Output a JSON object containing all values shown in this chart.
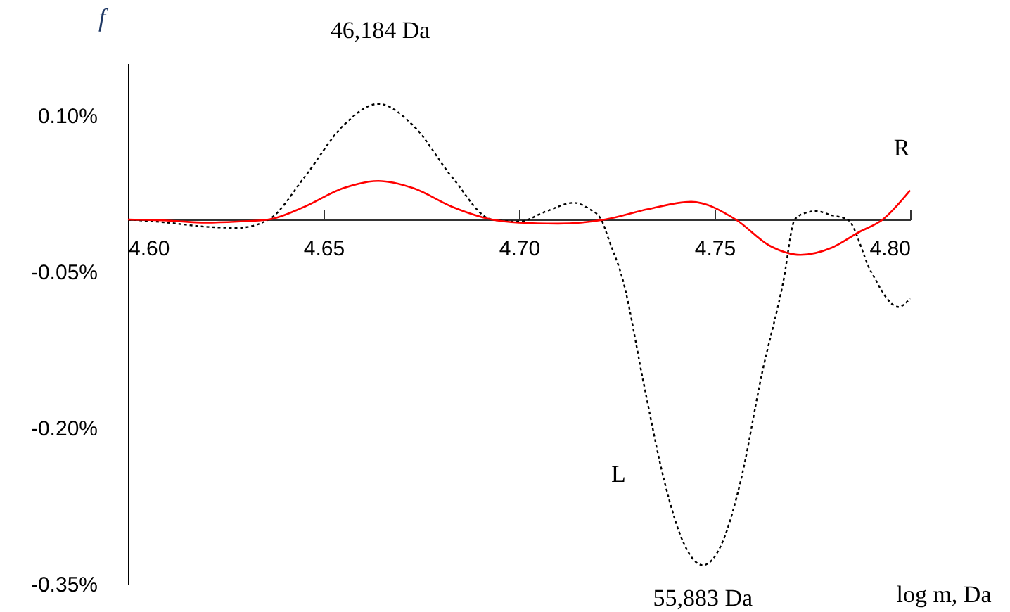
{
  "chart_data": {
    "type": "line",
    "xlabel": "log m, Da",
    "ylabel": "f",
    "annotations": [
      {
        "text": "46,184 Da",
        "x": 4.6645,
        "y": 0.111
      },
      {
        "text": "55,883 Da",
        "x": 4.747,
        "y": -0.332
      }
    ],
    "series": [
      {
        "name": "L",
        "color": "#000000",
        "line_style": "dotted",
        "x": [
          4.6,
          4.61,
          4.62,
          4.628,
          4.636,
          4.645,
          4.655,
          4.664,
          4.673,
          4.683,
          4.693,
          4.7,
          4.707,
          4.714,
          4.718,
          4.721,
          4.723,
          4.7266,
          4.732,
          4.737,
          4.742,
          4.747,
          4.752,
          4.7568,
          4.762,
          4.7676,
          4.7705,
          4.773,
          4.776,
          4.78,
          4.784,
          4.79,
          4.797,
          4.8
        ],
        "values": [
          0,
          -0.003,
          -0.007,
          -0.008,
          0,
          0.04,
          0.09,
          0.111,
          0.09,
          0.04,
          0,
          -0.002,
          0.008,
          0.016,
          0.01,
          0,
          -0.02,
          -0.059,
          -0.16,
          -0.249,
          -0.31,
          -0.332,
          -0.31,
          -0.249,
          -0.15,
          -0.059,
          0,
          0.006,
          0.008,
          0.004,
          0,
          -0.05,
          -0.084,
          -0.076
        ]
      },
      {
        "name": "R",
        "color": "#ff0000",
        "line_style": "solid",
        "x": [
          4.6,
          4.61,
          4.62,
          4.628,
          4.636,
          4.645,
          4.655,
          4.664,
          4.673,
          4.683,
          4.693,
          4.7,
          4.71,
          4.722,
          4.733,
          4.744,
          4.7554,
          4.764,
          4.772,
          4.78,
          4.787,
          4.793,
          4.8
        ],
        "values": [
          0,
          -0.001,
          -0.003,
          -0.002,
          0,
          0.012,
          0.03,
          0.037,
          0.03,
          0.012,
          0,
          -0.003,
          -0.004,
          0,
          0.01,
          0.017,
          0,
          -0.025,
          -0.034,
          -0.027,
          -0.012,
          0,
          0.028
        ]
      }
    ],
    "xlim": [
      4.6,
      4.8
    ],
    "xticks": [
      {
        "value": 4.6,
        "label": "4.60"
      },
      {
        "value": 4.65,
        "label": "4.65"
      },
      {
        "value": 4.7,
        "label": "4.70"
      },
      {
        "value": 4.75,
        "label": "4.75"
      },
      {
        "value": 4.8,
        "label": "4.80"
      }
    ],
    "ylim": [
      -0.35,
      0.15
    ],
    "yticks": [
      {
        "value": 0.1,
        "label": "0.10%"
      },
      {
        "value": -0.05,
        "label": "-0.05%"
      },
      {
        "value": -0.2,
        "label": "-0.20%"
      },
      {
        "value": -0.35,
        "label": "-0.35%"
      }
    ],
    "grid": false,
    "marker": "none"
  }
}
